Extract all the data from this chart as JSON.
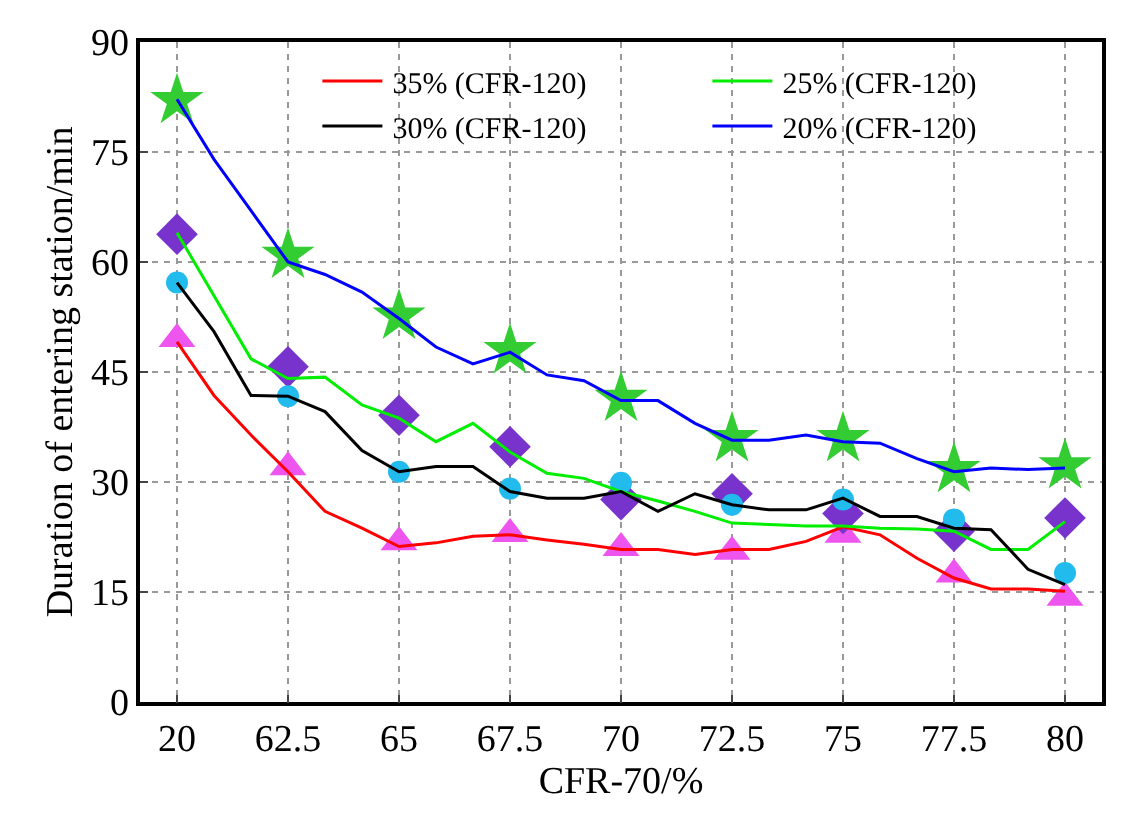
{
  "chart_data": {
    "type": "line",
    "xlabel": "CFR-70/%",
    "ylabel": "Duration of entering station/min",
    "categories": [
      "20",
      null,
      null,
      "62.5",
      null,
      null,
      "65",
      null,
      null,
      "67.5",
      null,
      null,
      "70",
      null,
      null,
      "72.5",
      null,
      null,
      "75",
      null,
      null,
      "77.5",
      null,
      null,
      "80"
    ],
    "ylim": [
      0,
      90
    ],
    "yticks": [
      0,
      15,
      30,
      45,
      60,
      75,
      90
    ],
    "grid": true,
    "legend": "top right",
    "marker": "none",
    "line_style": "solid",
    "series": [
      {
        "name": "35% (CFR-120)",
        "color": "#ff0000",
        "values": [
          49.1,
          41.8,
          36.4,
          31.4,
          26.0,
          23.7,
          21.2,
          21.7,
          22.6,
          22.8,
          22.1,
          21.5,
          20.8,
          20.8,
          20.1,
          20.8,
          20.8,
          21.9,
          23.9,
          22.8,
          19.6,
          16.9,
          15.4,
          15.4,
          15.1
        ]
      },
      {
        "name": "25% (CFR-120)",
        "color": "#00ee00",
        "values": [
          64.0,
          55.4,
          46.8,
          44.1,
          44.3,
          40.5,
          38.7,
          35.5,
          38.0,
          34.1,
          31.2,
          30.5,
          28.7,
          27.4,
          26.0,
          24.4,
          24.2,
          24.0,
          24.0,
          23.7,
          23.6,
          23.3,
          20.8,
          20.8,
          24.6
        ]
      },
      {
        "name": "30% (CFR-120)",
        "color": "#000000",
        "values": [
          57.2,
          50.5,
          41.8,
          41.7,
          39.6,
          34.3,
          31.4,
          32.1,
          32.1,
          28.7,
          27.8,
          27.8,
          28.7,
          26.0,
          28.4,
          26.9,
          26.2,
          26.2,
          27.8,
          25.3,
          25.3,
          23.7,
          23.5,
          18.1,
          16.0
        ]
      },
      {
        "name": "20% (CFR-120)",
        "color": "#0000ff",
        "values": [
          82.2,
          74.0,
          67.0,
          60.0,
          58.3,
          55.9,
          52.3,
          48.4,
          46.1,
          47.7,
          44.6,
          43.8,
          41.1,
          41.1,
          38.0,
          35.7,
          35.7,
          36.4,
          35.5,
          35.3,
          33.2,
          31.4,
          31.9,
          31.7,
          31.9
        ]
      },
      {
        "type": "scatter",
        "marker": "triangle",
        "color": "#ee55ee",
        "values": [
          49.5,
          null,
          null,
          32.0,
          null,
          null,
          21.8,
          null,
          null,
          22.9,
          null,
          null,
          21.0,
          null,
          null,
          20.5,
          null,
          null,
          22.8,
          null,
          null,
          17.4,
          null,
          null,
          14.2
        ]
      },
      {
        "type": "scatter",
        "marker": "diamond",
        "color": "#7733cc",
        "values": [
          63.8,
          null,
          null,
          45.7,
          null,
          null,
          39.1,
          null,
          null,
          34.8,
          null,
          null,
          27.6,
          null,
          null,
          28.4,
          null,
          null,
          25.7,
          null,
          null,
          23.3,
          null,
          null,
          25.1
        ]
      },
      {
        "type": "scatter",
        "marker": "circle",
        "color": "#22bbee",
        "values": [
          57.2,
          null,
          null,
          41.7,
          null,
          null,
          31.4,
          null,
          null,
          29.1,
          null,
          null,
          29.9,
          null,
          null,
          26.9,
          null,
          null,
          27.6,
          null,
          null,
          24.9,
          null,
          null,
          17.6
        ]
      },
      {
        "type": "scatter",
        "marker": "star",
        "color": "#33cc33",
        "values": [
          82.0,
          null,
          null,
          60.9,
          null,
          null,
          52.6,
          null,
          null,
          47.9,
          null,
          null,
          41.4,
          null,
          null,
          35.9,
          null,
          null,
          35.9,
          null,
          null,
          31.7,
          null,
          null,
          32.2
        ]
      }
    ]
  }
}
